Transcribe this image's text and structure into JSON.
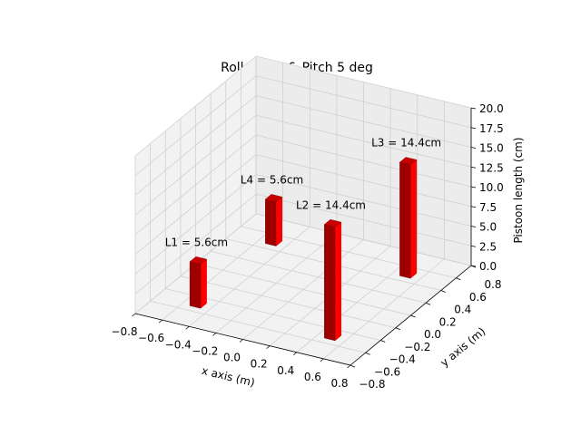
{
  "chart_data": {
    "type": "bar3d",
    "title": "Roll 0 deg & Pitch 5 deg",
    "xlabel": "x axis (m)",
    "ylabel": "y axis (m)",
    "zlabel": "Pistoon length (cm)",
    "xlim": [
      -0.8,
      0.8
    ],
    "ylim": [
      -0.8,
      0.8
    ],
    "zlim": [
      0,
      20
    ],
    "xticks": [
      -0.8,
      -0.6,
      -0.4,
      -0.2,
      0.0,
      0.2,
      0.4,
      0.6,
      0.8
    ],
    "yticks": [
      -0.8,
      -0.6,
      -0.4,
      -0.2,
      0.0,
      0.2,
      0.4,
      0.6,
      0.8
    ],
    "zticks": [
      0.0,
      2.5,
      5.0,
      7.5,
      10.0,
      12.5,
      15.0,
      17.5,
      20.0
    ],
    "xtick_labels": [
      "−0.8",
      "−0.6",
      "−0.4",
      "−0.2",
      "0.0",
      "0.2",
      "0.4",
      "0.6",
      "0.8"
    ],
    "ytick_labels": [
      "−0.8",
      "−0.6",
      "−0.4",
      "−0.2",
      "0.0",
      "0.2",
      "0.4",
      "0.6",
      "0.8"
    ],
    "ztick_labels": [
      "0.0",
      "2.5",
      "5.0",
      "7.5",
      "10.0",
      "12.5",
      "15.0",
      "17.5",
      "20.0"
    ],
    "grid": true,
    "bar_color": "#ff0000",
    "bars": [
      {
        "label": "L1 = 5.6cm",
        "x": -0.5,
        "y": -0.5,
        "z": 5.6
      },
      {
        "label": "L4 = 5.6cm",
        "x": -0.5,
        "y": 0.5,
        "z": 5.6
      },
      {
        "label": "L2 = 14.4cm",
        "x": 0.5,
        "y": -0.5,
        "z": 14.4
      },
      {
        "label": "L3 = 14.4cm",
        "x": 0.5,
        "y": 0.5,
        "z": 14.4
      }
    ]
  }
}
